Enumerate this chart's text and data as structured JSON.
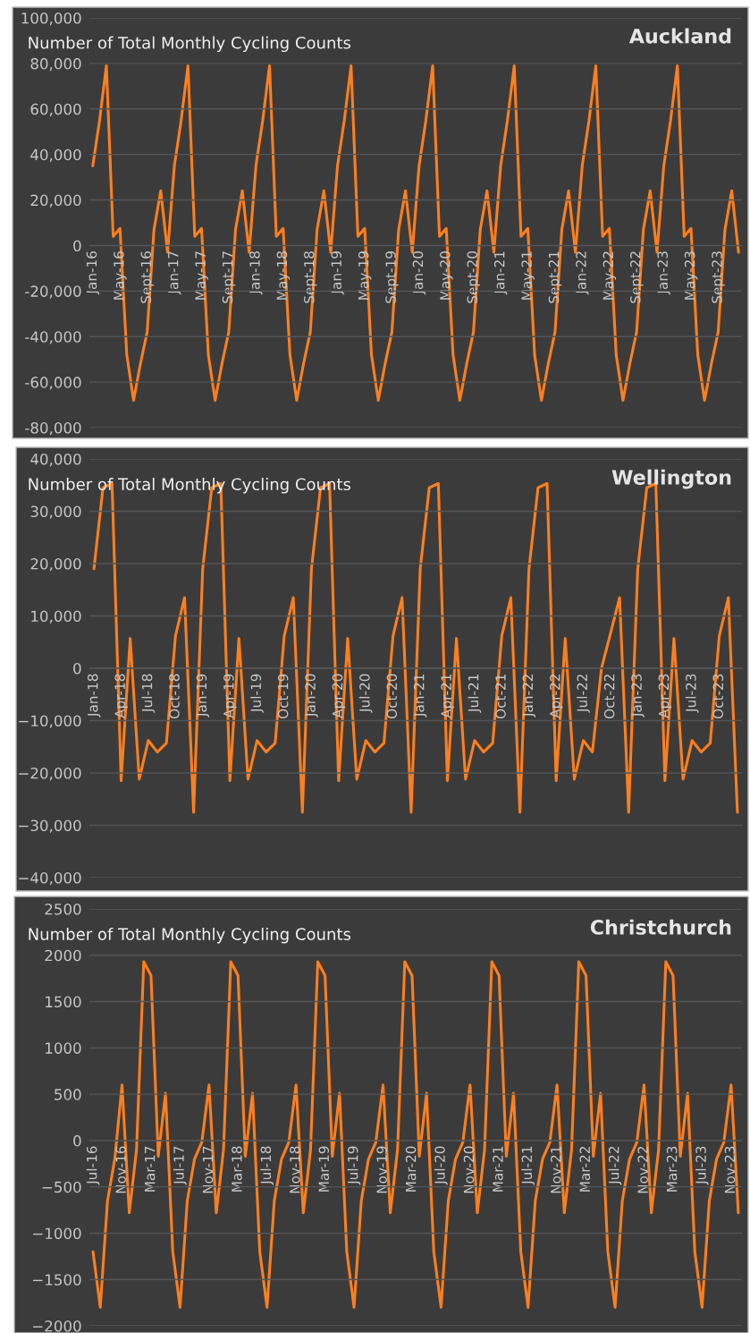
{
  "chart_data": [
    {
      "type": "line",
      "title": "Auckland",
      "subtitle": "Number of Total Monthly Cycling Counts",
      "grid": "y",
      "line_style": "solid",
      "categories": [
        "Jan-16",
        null,
        null,
        null,
        "May-16",
        null,
        null,
        null,
        "Sept-16",
        null,
        null,
        null,
        "Jan-17",
        null,
        null,
        null,
        "May-17",
        null,
        null,
        null,
        "Sept-17",
        null,
        null,
        null,
        "Jan-18",
        null,
        null,
        null,
        "May-18",
        null,
        null,
        null,
        "Sept-18",
        null,
        null,
        null,
        "Jan-19",
        null,
        null,
        null,
        "May-19",
        null,
        null,
        null,
        "Sept-19",
        null,
        null,
        null,
        "Jan-20",
        null,
        null,
        null,
        "May-20",
        null,
        null,
        null,
        "Sept-20",
        null,
        null,
        null,
        "Jan-21",
        null,
        null,
        null,
        "May-21",
        null,
        null,
        null,
        "Sept-21",
        null,
        null,
        null,
        "Jan-22",
        null,
        null,
        null,
        "May-22",
        null,
        null,
        null,
        "Sept-22",
        null,
        null,
        null,
        "Jan-23",
        null,
        null,
        null,
        "May-23",
        null,
        null,
        null,
        "Sept-23",
        null,
        null,
        null
      ],
      "series": [
        {
          "color": "#ff7f1e",
          "values": [
            35000,
            55000,
            79000,
            4000,
            7500,
            -48000,
            -68000,
            -52000,
            -38000,
            7000,
            24000,
            -3000,
            35000,
            55000,
            79000,
            4000,
            7500,
            -48000,
            -68000,
            -52000,
            -38000,
            7000,
            24000,
            -3000,
            35000,
            55000,
            79000,
            4000,
            7500,
            -48000,
            -68000,
            -52000,
            -38000,
            7000,
            24000,
            -3000,
            35000,
            55000,
            79000,
            4000,
            7500,
            -48000,
            -68000,
            -52000,
            -38000,
            7000,
            24000,
            -3000,
            35000,
            55000,
            79000,
            4000,
            7500,
            -48000,
            -68000,
            -52000,
            -38000,
            7000,
            24000,
            -3000,
            35000,
            55000,
            79000,
            4000,
            7500,
            -48000,
            -68000,
            -52000,
            -38000,
            7000,
            24000,
            -3000,
            35000,
            55000,
            79000,
            4000,
            7500,
            -48000,
            -68000,
            -52000,
            -38000,
            7000,
            24000,
            -3000,
            35000,
            55000,
            79000,
            4000,
            7500,
            -48000,
            -68000,
            -52000,
            -38000,
            7000,
            24000,
            -3000
          ]
        }
      ],
      "ylim": [
        -80000,
        100000
      ],
      "yticks": [
        {
          "value": -80000,
          "label": "-80,000"
        },
        {
          "value": -60000,
          "label": "-60,000"
        },
        {
          "value": -40000,
          "label": "-40,000"
        },
        {
          "value": -20000,
          "label": "-20,000"
        },
        0,
        {
          "value": 20000,
          "label": "20,000"
        },
        {
          "value": 40000,
          "label": "40,000"
        },
        {
          "value": 60000,
          "label": "60,000"
        },
        {
          "value": 80000,
          "label": "80,000"
        },
        {
          "value": 100000,
          "label": "100,000"
        }
      ]
    },
    {
      "type": "line",
      "title": "Wellington",
      "subtitle": "Number of Total Monthly Cycling Counts",
      "grid": "y",
      "line_style": "solid",
      "categories": [
        "Jan-18",
        null,
        null,
        "Apr-18",
        null,
        null,
        "Jul-18",
        null,
        null,
        "Oct-18",
        null,
        null,
        "Jan-19",
        null,
        null,
        "Apr-19",
        null,
        null,
        "Jul-19",
        null,
        null,
        "Oct-19",
        null,
        null,
        "Jan-20",
        null,
        null,
        "Apr-20",
        null,
        null,
        "Jul-20",
        null,
        null,
        "Oct-20",
        null,
        null,
        "Jan-21",
        null,
        null,
        "Apr-21",
        null,
        null,
        "Jul-21",
        null,
        null,
        "Oct-21",
        null,
        null,
        "Jan-22",
        null,
        null,
        "Apr-22",
        null,
        null,
        "Jul-22",
        null,
        null,
        "Oct-22",
        null,
        null,
        "Jan-23",
        null,
        null,
        "Apr-23",
        null,
        null,
        "Jul-23",
        null,
        null,
        "Oct-23",
        null,
        null
      ],
      "series": [
        {
          "color": "#ff7f1e",
          "values": [
            19000,
            34500,
            35300,
            -21500,
            5700,
            -21200,
            -13800,
            -16000,
            -14300,
            6200,
            13500,
            -27500,
            19000,
            34500,
            35300,
            -21500,
            5700,
            -21200,
            -13800,
            -16000,
            -14300,
            6200,
            13500,
            -27500,
            19000,
            34500,
            35300,
            -21500,
            5700,
            -21200,
            -13800,
            -16000,
            -14300,
            6200,
            13500,
            -27500,
            19000,
            34500,
            35300,
            -21500,
            5700,
            -21200,
            -13800,
            -16000,
            -14300,
            6200,
            13500,
            -27500,
            19000,
            34500,
            35300,
            -21500,
            5700,
            -21200,
            -13800,
            -16000,
            0,
            6700,
            13500,
            -27500,
            19000,
            34500,
            35300,
            -21500,
            5700,
            -21200,
            -13800,
            -16000,
            -14300,
            6200,
            13500,
            -27500
          ]
        }
      ],
      "ylim": [
        -40000,
        40000
      ],
      "yticks": [
        {
          "value": -40000,
          "label": "−40,000"
        },
        {
          "value": -30000,
          "label": "−30,000"
        },
        {
          "value": -20000,
          "label": "−20,000"
        },
        {
          "value": -10000,
          "label": "−10,000"
        },
        0,
        {
          "value": 10000,
          "label": "10,000"
        },
        {
          "value": 20000,
          "label": "20,000"
        },
        {
          "value": 30000,
          "label": "30,000"
        },
        {
          "value": 40000,
          "label": "40,000"
        }
      ]
    },
    {
      "type": "line",
      "title": "Christchurch",
      "subtitle": "Number of Total Monthly Cycling Counts",
      "grid": "y",
      "line_style": "solid",
      "categories": [
        "Jul-16",
        null,
        null,
        null,
        "Nov-16",
        null,
        null,
        null,
        "Mar-17",
        null,
        null,
        null,
        "Jul-17",
        null,
        null,
        null,
        "Nov-17",
        null,
        null,
        null,
        "Mar-18",
        null,
        null,
        null,
        "Jul-18",
        null,
        null,
        null,
        "Nov-18",
        null,
        null,
        null,
        "Mar-19",
        null,
        null,
        null,
        "Jul-19",
        null,
        null,
        null,
        "Nov-19",
        null,
        null,
        null,
        "Mar-20",
        null,
        null,
        null,
        "Jul-20",
        null,
        null,
        null,
        "Nov-20",
        null,
        null,
        null,
        "Mar-21",
        null,
        null,
        null,
        "Jul-21",
        null,
        null,
        null,
        "Nov-21",
        null,
        null,
        null,
        "Mar-22",
        null,
        null,
        null,
        "Jul-22",
        null,
        null,
        null,
        "Nov-22",
        null,
        null,
        null,
        "Mar-23",
        null,
        null,
        null,
        "Jul-23",
        null,
        null,
        null,
        "Nov-23",
        null
      ],
      "series": [
        {
          "color": "#ff7f1e",
          "values": [
            -1200,
            -1800,
            -650,
            -200,
            600,
            -780,
            -100,
            1930,
            1780,
            -170,
            510,
            -1200,
            -1800,
            -650,
            -200,
            -20,
            600,
            -780,
            -100,
            1930,
            1780,
            -170,
            510,
            -1200,
            -1800,
            -650,
            -200,
            -20,
            600,
            -780,
            -100,
            1930,
            1780,
            -170,
            510,
            -1200,
            -1800,
            -650,
            -200,
            -20,
            600,
            -780,
            -100,
            1930,
            1780,
            -170,
            510,
            -1200,
            -1800,
            -650,
            -200,
            -20,
            600,
            -780,
            -100,
            1930,
            1780,
            -170,
            510,
            -1200,
            -1800,
            -650,
            -200,
            -20,
            600,
            -780,
            -100,
            1930,
            1780,
            -170,
            510,
            -1200,
            -1800,
            -650,
            -200,
            -20,
            600,
            -780,
            -100,
            1930,
            1780,
            -170,
            510,
            -1200,
            -1800,
            -650,
            -200,
            -20,
            600,
            -780
          ]
        }
      ],
      "ylim": [
        -2000,
        2500
      ],
      "yticks": [
        {
          "value": -2000,
          "label": "−2000"
        },
        {
          "value": -1500,
          "label": "−1500"
        },
        {
          "value": -1000,
          "label": "−1000"
        },
        {
          "value": -500,
          "label": "−500"
        },
        0,
        500,
        1000,
        1500,
        2000,
        2500
      ]
    }
  ]
}
